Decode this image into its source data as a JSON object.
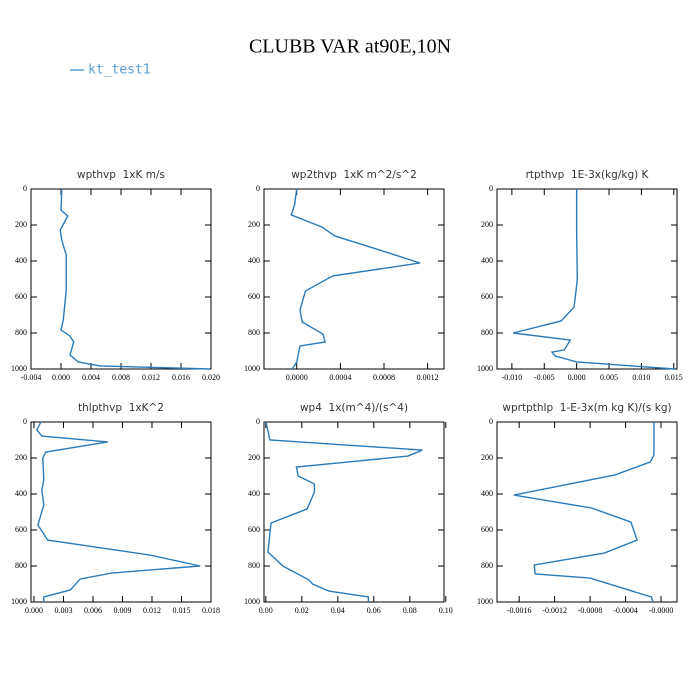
{
  "title": "CLUBB VAR at90E,10N",
  "chart_data": [
    {
      "type": "line",
      "title": "wpthvp  1xK m/s",
      "y": [
        0,
        117,
        150,
        228,
        283,
        367,
        561,
        728,
        783,
        817,
        850,
        922,
        961,
        983,
        1000
      ],
      "series": [
        {
          "name": "kt_test1",
          "color": "#2b7bba",
          "values": [
            0.0001,
            0.0,
            0.0009,
            -0.0001,
            0.0001,
            0.0007,
            0.0007,
            0.0003,
            0.0,
            0.0012,
            0.0017,
            0.0012,
            0.0023,
            0.0052,
            0.0199
          ]
        }
      ],
      "xlim": [
        -0.004,
        0.02
      ],
      "ylim": [
        0,
        1000
      ],
      "invert_y": true,
      "xticks": [
        {
          "value": -0.004,
          "label": "-0.004"
        },
        {
          "value": 0,
          "label": "0.000"
        },
        {
          "value": 0.004,
          "label": "0.004"
        },
        {
          "value": 0.008,
          "label": "0.008"
        },
        {
          "value": 0.012,
          "label": "0.012"
        },
        {
          "value": 0.016,
          "label": "0.016"
        },
        {
          "value": 0.02,
          "label": "0.020"
        }
      ],
      "yticks": [
        0,
        200,
        400,
        600,
        800,
        1000
      ]
    },
    {
      "type": "line",
      "title": "wp2thvp  1xK m^2/s^2",
      "y": [
        0,
        89,
        144,
        211,
        261,
        339,
        411,
        483,
        567,
        672,
        739,
        806,
        850,
        872,
        961,
        1000
      ],
      "series": [
        {
          "name": "kt_test1",
          "color": "#2b7bba",
          "values": [
            0.0,
            -2e-05,
            -5e-05,
            0.00023,
            0.00035,
            0.00076,
            0.00113,
            0.00033,
            8e-05,
            3e-05,
            5e-05,
            0.00024,
            0.00026,
            3e-05,
            0.0,
            -4e-05
          ]
        }
      ],
      "xlim": [
        -0.0003,
        0.00135
      ],
      "ylim": [
        0,
        1000
      ],
      "invert_y": true,
      "xticks": [
        {
          "value": 0,
          "label": "0.0000"
        },
        {
          "value": 0.0004,
          "label": "0.0004"
        },
        {
          "value": 0.0008,
          "label": "0.0008"
        },
        {
          "value": 0.0012,
          "label": "0.0012"
        }
      ],
      "yticks": [
        0,
        200,
        400,
        600,
        800,
        1000
      ]
    },
    {
      "type": "line",
      "title": "rtpthvp  1E-3x(kg/kg) K",
      "y": [
        0,
        228,
        506,
        656,
        733,
        800,
        839,
        894,
        906,
        928,
        961,
        1000
      ],
      "series": [
        {
          "name": "kt_test1",
          "color": "#2b7bba",
          "values": [
            0.0,
            0.0,
            0.0001,
            -0.0004,
            -0.0024,
            -0.0098,
            -0.001,
            -0.0019,
            -0.0038,
            -0.0033,
            0.0,
            0.0152
          ]
        }
      ],
      "xlim": [
        -0.0123,
        0.0155
      ],
      "ylim": [
        0,
        1000
      ],
      "invert_y": true,
      "xticks": [
        {
          "value": -0.01,
          "label": "-0.010"
        },
        {
          "value": -0.005,
          "label": "-0.005"
        },
        {
          "value": 0,
          "label": "0.000"
        },
        {
          "value": 0.005,
          "label": "0.005"
        },
        {
          "value": 0.01,
          "label": "0.010"
        },
        {
          "value": 0.015,
          "label": "0.015"
        }
      ],
      "yticks": [
        0,
        200,
        400,
        600,
        800,
        1000
      ]
    },
    {
      "type": "line",
      "title": "thlpthvp  1xK^2",
      "y": [
        0,
        44,
        78,
        111,
        167,
        200,
        322,
        378,
        461,
        572,
        656,
        739,
        800,
        839,
        872,
        933,
        972,
        1000
      ],
      "series": [
        {
          "name": "kt_test1",
          "color": "#2b7bba",
          "values": [
            0.0007,
            0.0003,
            0.0008,
            0.0075,
            0.0012,
            0.0009,
            0.001,
            0.0008,
            0.001,
            0.0004,
            0.0014,
            0.0118,
            0.0169,
            0.0079,
            0.0047,
            0.0037,
            0.001,
            0.001
          ]
        }
      ],
      "xlim": [
        -0.0003,
        0.018
      ],
      "ylim": [
        0,
        1000
      ],
      "invert_y": true,
      "xticks": [
        {
          "value": 0,
          "label": "0.000"
        },
        {
          "value": 0.003,
          "label": "0.003"
        },
        {
          "value": 0.006,
          "label": "0.006"
        },
        {
          "value": 0.009,
          "label": "0.009"
        },
        {
          "value": 0.012,
          "label": "0.012"
        },
        {
          "value": 0.015,
          "label": "0.015"
        },
        {
          "value": 0.018,
          "label": "0.018"
        }
      ],
      "yticks": [
        0,
        200,
        400,
        600,
        800,
        1000
      ]
    },
    {
      "type": "line",
      "title": "wp4  1x(m^4)/(s^4)",
      "y": [
        0,
        100,
        156,
        189,
        222,
        250,
        300,
        344,
        389,
        483,
        561,
        722,
        800,
        878,
        900,
        939,
        972,
        1000
      ],
      "series": [
        {
          "name": "kt_test1",
          "color": "#2b7bba",
          "values": [
            0.0001,
            0.0023,
            0.087,
            0.079,
            0.046,
            0.017,
            0.018,
            0.027,
            0.027,
            0.023,
            0.0029,
            0.0012,
            0.0095,
            0.024,
            0.026,
            0.035,
            0.057,
            0.057
          ]
        }
      ],
      "xlim": [
        -0.001,
        0.099
      ],
      "ylim": [
        0,
        1000
      ],
      "invert_y": true,
      "xticks": [
        {
          "value": 0,
          "label": "0.00"
        },
        {
          "value": 0.02,
          "label": "0.02"
        },
        {
          "value": 0.04,
          "label": "0.04"
        },
        {
          "value": 0.06,
          "label": "0.06"
        },
        {
          "value": 0.08,
          "label": "0.08"
        },
        {
          "value": 0.1,
          "label": "0.10"
        }
      ],
      "yticks": [
        0,
        200,
        400,
        600,
        800,
        1000
      ]
    },
    {
      "type": "line",
      "title": "wprtpthlp  1-E-3x(m kg K)/(s kg)",
      "y": [
        0,
        183,
        222,
        294,
        406,
        478,
        556,
        656,
        728,
        794,
        844,
        867,
        972,
        1000
      ],
      "series": [
        {
          "name": "kt_test1",
          "color": "#2b7bba",
          "values": [
            -8e-05,
            -8e-05,
            -0.00012,
            -0.00052,
            -0.00166,
            -0.00078,
            -0.00034,
            -0.00027,
            -0.00064,
            -0.00143,
            -0.00142,
            -0.0008,
            -0.00011,
            -9e-05
          ]
        }
      ],
      "xlim": [
        -0.00185,
        0.00018
      ],
      "ylim": [
        0,
        1000
      ],
      "invert_y": true,
      "xticks": [
        {
          "value": -0.0016,
          "label": "-0.0016"
        },
        {
          "value": -0.0012,
          "label": "-0.0012"
        },
        {
          "value": -0.0008,
          "label": "-0.0008"
        },
        {
          "value": -0.0004,
          "label": "-0.0004"
        },
        {
          "value": 0,
          "label": "-0.0000"
        }
      ],
      "yticks": [
        0,
        200,
        400,
        600,
        800,
        1000
      ]
    }
  ]
}
